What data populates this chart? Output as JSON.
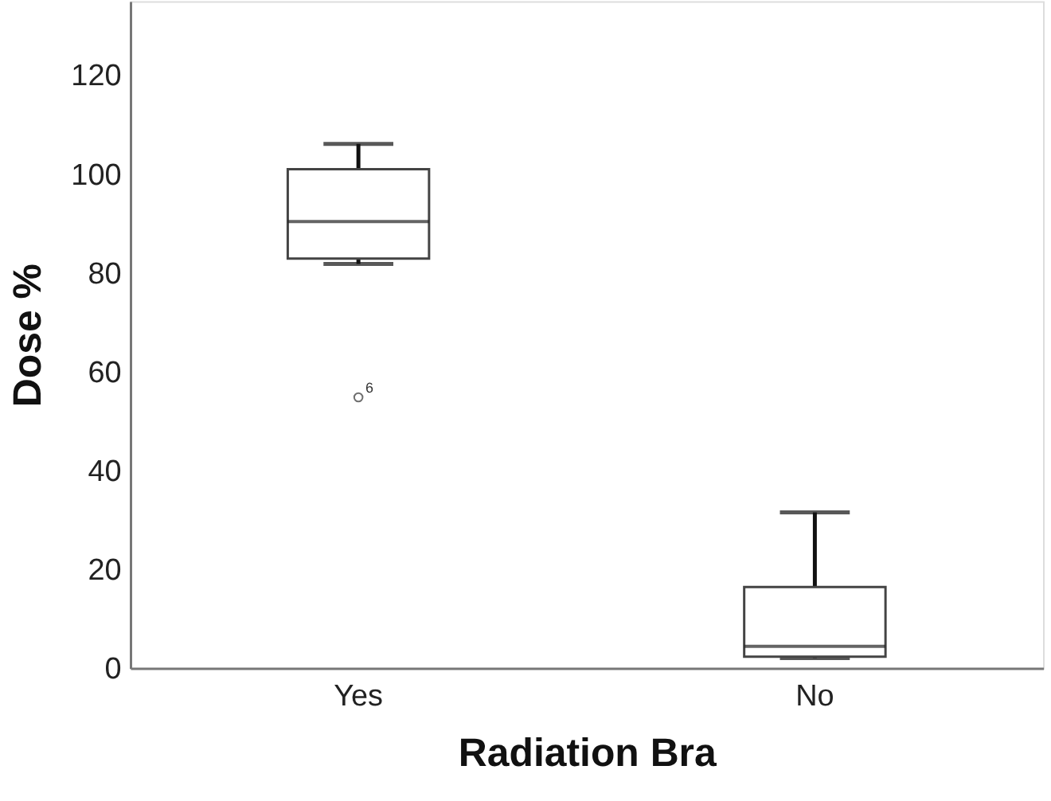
{
  "chart_data": {
    "type": "box",
    "xlabel": "Radiation Bra",
    "ylabel": "Dose %",
    "categories": [
      "Yes",
      "No"
    ],
    "boxes": [
      {
        "low": 81.8,
        "q1": 82.9,
        "median": 90.4,
        "q3": 101.0,
        "high": 106.1,
        "outliers": [
          54.8
        ]
      },
      {
        "low": 2.0,
        "q1": 2.3,
        "median": 4.4,
        "q3": 16.4,
        "high": 31.5
      }
    ],
    "ylim": [
      0,
      135
    ],
    "yticks": [
      0,
      20,
      40,
      60,
      80,
      100,
      120
    ],
    "grid": false,
    "annotations": [
      "6"
    ]
  }
}
